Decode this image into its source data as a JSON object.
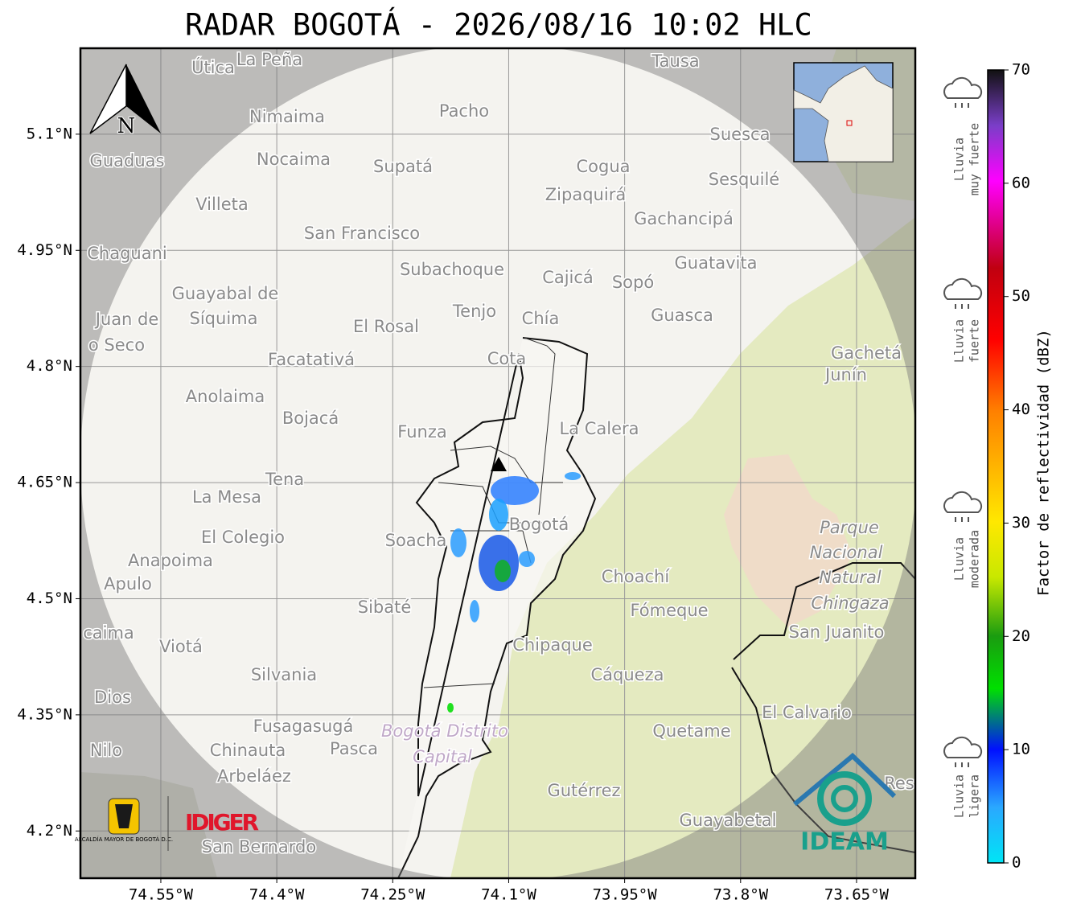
{
  "title": "RADAR BOGOTÁ - 2026/08/16 10:02 HLC",
  "map": {
    "lon_range": [
      -74.654,
      -73.574
    ],
    "lat_range": [
      4.139,
      5.211
    ],
    "lon_ticks": [
      {
        "value": -74.55,
        "label": "74.55°W"
      },
      {
        "value": -74.4,
        "label": "74.4°W"
      },
      {
        "value": -74.25,
        "label": "74.25°W"
      },
      {
        "value": -74.1,
        "label": "74.1°W"
      },
      {
        "value": -73.95,
        "label": "73.95°W"
      },
      {
        "value": -73.8,
        "label": "73.8°W"
      },
      {
        "value": -73.65,
        "label": "73.65°W"
      }
    ],
    "lat_ticks": [
      {
        "value": 5.1,
        "label": "5.1°N"
      },
      {
        "value": 4.95,
        "label": "4.95°N"
      },
      {
        "value": 4.8,
        "label": "4.8°N"
      },
      {
        "value": 4.65,
        "label": "4.65°N"
      },
      {
        "value": 4.5,
        "label": "4.5°N"
      },
      {
        "value": 4.35,
        "label": "4.35°N"
      },
      {
        "value": 4.2,
        "label": "4.2°N"
      }
    ],
    "north": "N",
    "places": [
      "Útica",
      "La Peña",
      "Tausa",
      "Pacho",
      "Nimaima",
      "Suesca",
      "Guaduas",
      "Nocaima",
      "Supatá",
      "Cogua",
      "Sesquilé",
      "Zipaquirá",
      "Villeta",
      "Gachancipá",
      "San Francisco",
      "Chaguani",
      "Guatavita",
      "Subachoque",
      "Cajicá",
      "Sopó",
      "Guayabal de",
      "Síquima",
      "Juan de",
      "o Seco",
      "Tenjo",
      "Chía",
      "Guasca",
      "El Rosal",
      "Facatativá",
      "Cota",
      "Gachetá",
      "Junín",
      "Anolaima",
      "Bojacá",
      "Funza",
      "La Calera",
      "Tena",
      "La Mesa",
      "Bogotá",
      "El Colegio",
      "Soacha",
      "Anapoima",
      "Apulo",
      "Choachí",
      "Sibaté",
      "Fómeque",
      "San Juanito",
      "caima",
      "Viotá",
      "Chipaque",
      "Silvania",
      "Cáqueza",
      "Dios",
      "El Calvario",
      "Fusagasugá",
      "Quetame",
      "Nilo",
      "Chinauta",
      "Pasca",
      "Arbeláez",
      "Gutérrez",
      "Res",
      "Guayabetal",
      "San Bernardo"
    ],
    "park": [
      "Parque",
      "Nacional",
      "Natural",
      "Chingaza"
    ],
    "district": [
      "Bogotá Distrito",
      "Capital"
    ]
  },
  "logos": {
    "alcaldia": "ALCALDÍA MAYOR DE BOGOTÁ D.C.",
    "idiger": "IDIGER",
    "ideam": "IDEAM"
  },
  "colorbar": {
    "label": "Factor de reflectividad (dBZ)",
    "range": [
      0,
      70
    ],
    "ticks": [
      0,
      10,
      20,
      30,
      40,
      50,
      60,
      70
    ]
  },
  "rain_levels": [
    [
      "Lluvia",
      "muy fuerte"
    ],
    [
      "Lluvia",
      "fuerte"
    ],
    [
      "Lluvia",
      "moderada"
    ],
    [
      "Lluvia",
      "ligera"
    ]
  ]
}
